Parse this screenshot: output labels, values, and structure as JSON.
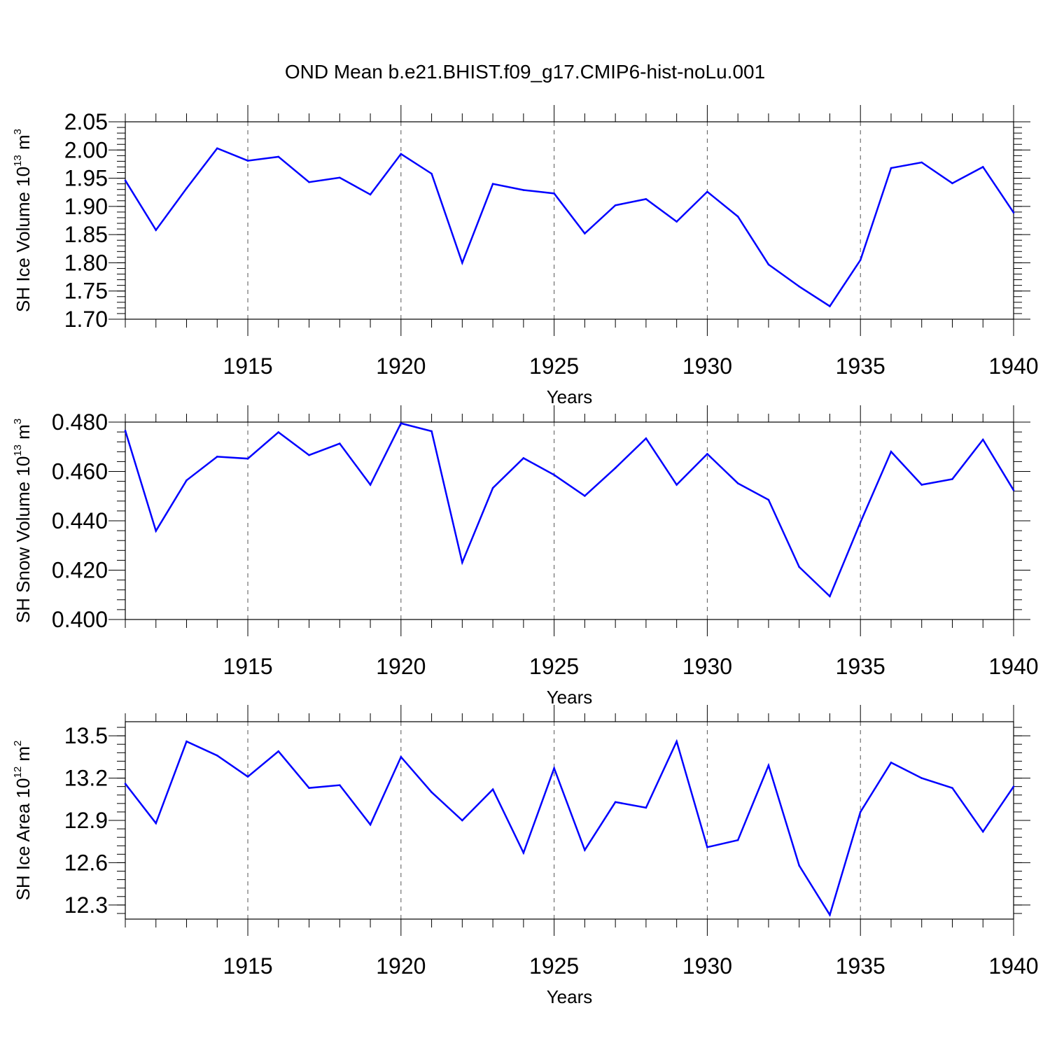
{
  "title": "OND Mean b.e21.BHIST.f09_g17.CMIP6-hist-noLu.001",
  "line_color": "#0000ff",
  "chart_data": [
    {
      "type": "line",
      "ylabel": {
        "main": "SH Ice Volume 10",
        "sup1": "13",
        "mid": " m",
        "sup2": "3"
      },
      "xlabel": "Years",
      "xlim": [
        1911,
        1940
      ],
      "ylim": [
        1.7,
        2.05
      ],
      "yticks": [
        1.7,
        1.75,
        1.8,
        1.85,
        1.9,
        1.95,
        2.0,
        2.05
      ],
      "ytick_labels": [
        "1.70",
        "1.75",
        "1.80",
        "1.85",
        "1.90",
        "1.95",
        "2.00",
        "2.05"
      ],
      "xticks": [
        1915,
        1920,
        1925,
        1930,
        1935,
        1940
      ],
      "xtick_labels": [
        "1915",
        "1920",
        "1925",
        "1930",
        "1935",
        "1940"
      ],
      "grid": "vertical dashed at labeled years",
      "series": [
        {
          "x": [
            1911,
            1912,
            1913,
            1914,
            1915,
            1916,
            1917,
            1918,
            1919,
            1920,
            1921,
            1922,
            1923,
            1924,
            1925,
            1926,
            1927,
            1928,
            1929,
            1930,
            1931,
            1932,
            1933,
            1934,
            1935,
            1936,
            1937,
            1938,
            1939,
            1940
          ],
          "values": [
            1.946,
            1.858,
            1.932,
            2.003,
            1.981,
            1.988,
            1.943,
            1.951,
            1.921,
            1.993,
            1.958,
            1.8,
            1.94,
            1.929,
            1.923,
            1.852,
            1.902,
            1.913,
            1.873,
            1.926,
            1.882,
            1.797,
            1.758,
            1.723,
            1.805,
            1.968,
            1.978,
            1.941,
            1.97,
            1.889
          ]
        }
      ]
    },
    {
      "type": "line",
      "ylabel": {
        "main": "SH Snow Volume 10",
        "sup1": "13",
        "mid": " m",
        "sup2": "3"
      },
      "xlabel": "Years",
      "xlim": [
        1911,
        1940
      ],
      "ylim": [
        0.4,
        0.48
      ],
      "yticks": [
        0.4,
        0.42,
        0.44,
        0.46,
        0.48
      ],
      "ytick_labels": [
        "0.400",
        "0.420",
        "0.440",
        "0.460",
        "0.480"
      ],
      "xticks": [
        1915,
        1920,
        1925,
        1930,
        1935,
        1940
      ],
      "xtick_labels": [
        "1915",
        "1920",
        "1925",
        "1930",
        "1935",
        "1940"
      ],
      "grid": "vertical dashed at labeled years",
      "series": [
        {
          "x": [
            1911,
            1912,
            1913,
            1914,
            1915,
            1916,
            1917,
            1918,
            1919,
            1920,
            1921,
            1922,
            1923,
            1924,
            1925,
            1926,
            1927,
            1928,
            1929,
            1930,
            1931,
            1932,
            1933,
            1934,
            1935,
            1936,
            1937,
            1938,
            1939,
            1940
          ],
          "values": [
            0.4765,
            0.4359,
            0.4564,
            0.466,
            0.4652,
            0.4759,
            0.4666,
            0.4713,
            0.4546,
            0.4795,
            0.4763,
            0.4231,
            0.4533,
            0.4654,
            0.4586,
            0.4501,
            0.4614,
            0.4734,
            0.4546,
            0.4671,
            0.4552,
            0.4485,
            0.4213,
            0.4094,
            0.4394,
            0.468,
            0.4546,
            0.4569,
            0.4729,
            0.4524
          ]
        }
      ]
    },
    {
      "type": "line",
      "ylabel": {
        "main": "SH Ice Area 10",
        "sup1": "12",
        "mid": " m",
        "sup2": "2"
      },
      "xlabel": "Years",
      "xlim": [
        1911,
        1940
      ],
      "ylim": [
        12.2,
        13.6
      ],
      "yticks": [
        12.3,
        12.6,
        12.9,
        13.2,
        13.5
      ],
      "ytick_labels": [
        "12.3",
        "12.6",
        "12.9",
        "13.2",
        "13.5"
      ],
      "xticks": [
        1915,
        1920,
        1925,
        1930,
        1935,
        1940
      ],
      "xtick_labels": [
        "1915",
        "1920",
        "1925",
        "1930",
        "1935",
        "1940"
      ],
      "grid": "vertical dashed at labeled years",
      "series": [
        {
          "x": [
            1911,
            1912,
            1913,
            1914,
            1915,
            1916,
            1917,
            1918,
            1919,
            1920,
            1921,
            1922,
            1923,
            1924,
            1925,
            1926,
            1927,
            1928,
            1929,
            1930,
            1931,
            1932,
            1933,
            1934,
            1935,
            1936,
            1937,
            1938,
            1939,
            1940
          ],
          "values": [
            13.16,
            12.88,
            13.46,
            13.36,
            13.21,
            13.39,
            13.13,
            13.15,
            12.87,
            13.35,
            13.1,
            12.9,
            13.12,
            12.67,
            13.27,
            12.69,
            13.03,
            12.99,
            13.46,
            12.71,
            12.76,
            13.29,
            12.58,
            12.23,
            12.96,
            13.31,
            13.2,
            13.13,
            12.82,
            13.14
          ]
        }
      ]
    }
  ]
}
